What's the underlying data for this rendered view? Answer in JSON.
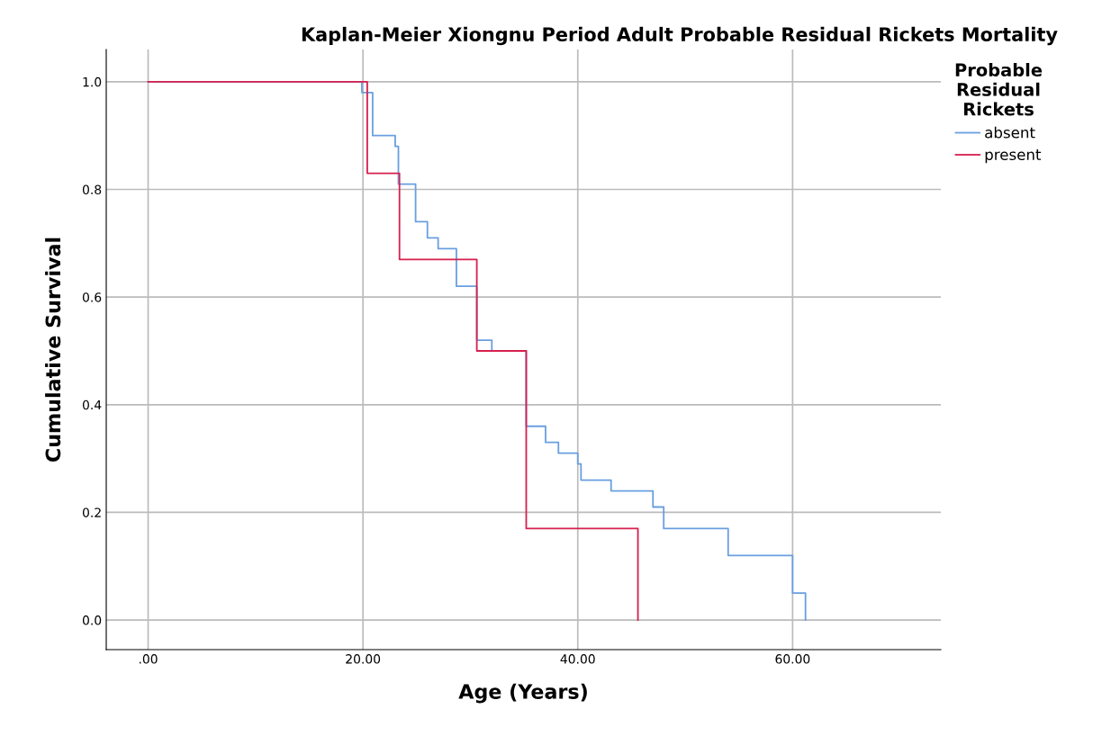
{
  "chart_data": {
    "type": "step",
    "title": "Kaplan-Meier Xiongnu Period Adult Probable Residual Rickets Mortality",
    "xlabel": "Age (Years)",
    "ylabel": "Cumulative Survival",
    "legend_title": "Probable\nResidual\nRickets",
    "series": [
      {
        "name": "absent",
        "color": "#6a9fe0",
        "x": [
          0,
          19.9,
          20.9,
          23.0,
          23.3,
          24.9,
          26.0,
          27.0,
          28.7,
          30.6,
          32.0,
          35.2,
          37.0,
          38.2,
          40.0,
          40.3,
          43.1,
          47.0,
          48.0,
          54.0,
          60.0,
          61.2
        ],
        "values": [
          1,
          0.98,
          0.9,
          0.88,
          0.81,
          0.74,
          0.71,
          0.69,
          0.62,
          0.52,
          0.5,
          0.36,
          0.33,
          0.31,
          0.29,
          0.26,
          0.24,
          0.21,
          0.17,
          0.12,
          0.05,
          0
        ]
      },
      {
        "name": "present",
        "color": "#d6204e",
        "x": [
          0,
          20.4,
          23.4,
          30.6,
          35.2,
          45.6
        ],
        "values": [
          1,
          0.83,
          0.67,
          0.5,
          0.17,
          0
        ]
      }
    ],
    "xlim": [
      -3.9,
      73.8
    ],
    "ylim": [
      -0.055,
      1.06
    ],
    "xticks": [
      {
        "value": 0,
        "label": ".00"
      },
      {
        "value": 20,
        "label": "20.00"
      },
      {
        "value": 40,
        "label": "40.00"
      },
      {
        "value": 60,
        "label": "60.00"
      }
    ],
    "yticks": [
      {
        "value": 0,
        "label": "0.0"
      },
      {
        "value": 0.2,
        "label": "0.2"
      },
      {
        "value": 0.4,
        "label": "0.4"
      },
      {
        "value": 0.6,
        "label": "0.6"
      },
      {
        "value": 0.8,
        "label": "0.8"
      },
      {
        "value": 1,
        "label": "1.0"
      }
    ],
    "grid": true,
    "legend": "top right"
  }
}
